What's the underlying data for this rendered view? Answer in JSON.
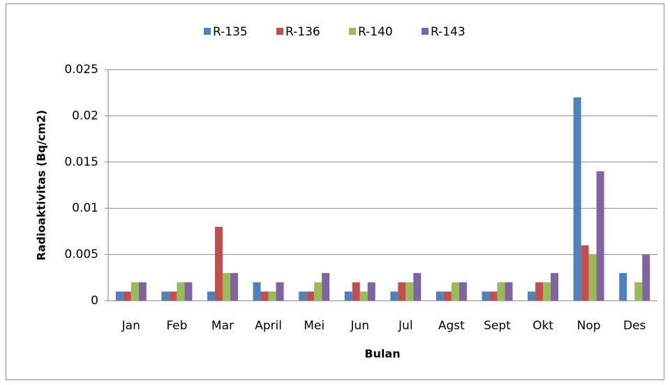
{
  "chart_data": {
    "type": "bar",
    "x_label": "Bulan",
    "y_label": "Radioaktivitas (Bq/cm2)",
    "categories": [
      "Jan",
      "Feb",
      "Mar",
      "April",
      "Mei",
      "Jun",
      "Jul",
      "Agst",
      "Sept",
      "Okt",
      "Nop",
      "Des"
    ],
    "series": [
      {
        "name": "R-135",
        "color": "#4f81bd",
        "values": [
          0.001,
          0.001,
          0.001,
          0.002,
          0.001,
          0.001,
          0.001,
          0.001,
          0.001,
          0.001,
          0.022,
          0.003
        ]
      },
      {
        "name": "R-136",
        "color": "#c0504d",
        "values": [
          0.001,
          0.001,
          0.008,
          0.001,
          0.001,
          0.002,
          0.002,
          0.001,
          0.001,
          0.002,
          0.006,
          0
        ]
      },
      {
        "name": "R-140",
        "color": "#9bbb59",
        "values": [
          0.002,
          0.002,
          0.003,
          0.001,
          0.002,
          0.001,
          0.002,
          0.002,
          0.002,
          0.002,
          0.005,
          0.002
        ]
      },
      {
        "name": "R-143",
        "color": "#8064a2",
        "values": [
          0.002,
          0.002,
          0.003,
          0.002,
          0.003,
          0.002,
          0.003,
          0.002,
          0.002,
          0.003,
          0.014,
          0.005
        ]
      }
    ],
    "ylim": [
      0,
      0.025
    ],
    "yticks": [
      0,
      0.005,
      0.01,
      0.015,
      0.02,
      0.025
    ],
    "grid": true,
    "legend": "top"
  }
}
